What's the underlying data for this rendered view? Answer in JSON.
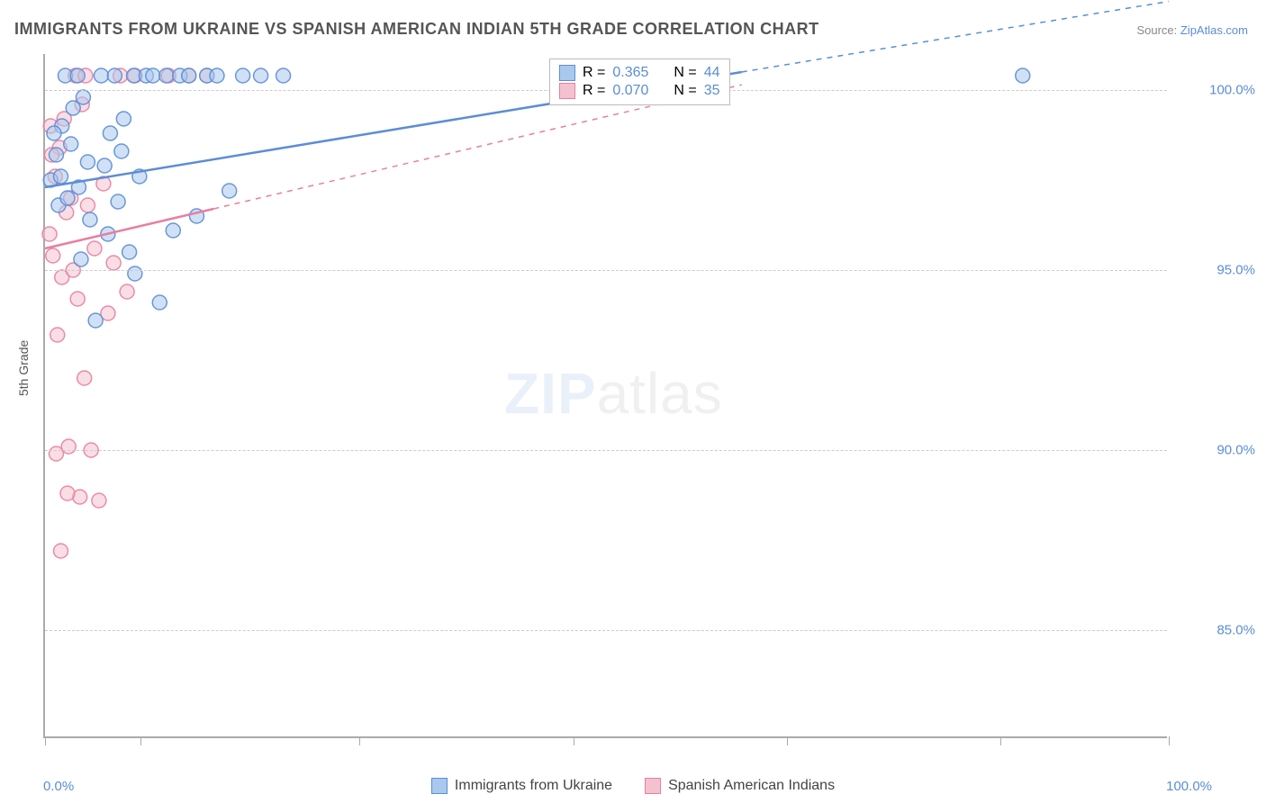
{
  "title": "IMMIGRANTS FROM UKRAINE VS SPANISH AMERICAN INDIAN 5TH GRADE CORRELATION CHART",
  "source_prefix": "Source: ",
  "source_link": "ZipAtlas.com",
  "ylabel": "5th Grade",
  "watermark_bold": "ZIP",
  "watermark_light": "atlas",
  "chart": {
    "type": "scatter",
    "xlim": [
      0,
      100
    ],
    "ylim": [
      82,
      101
    ],
    "ytick_labels": [
      "85.0%",
      "90.0%",
      "95.0%",
      "100.0%"
    ],
    "ytick_values": [
      85,
      90,
      95,
      100
    ],
    "xtick_positions": [
      0,
      8.5,
      28,
      47,
      66,
      85,
      100
    ],
    "xtick_label_left": "0.0%",
    "xtick_label_right": "100.0%",
    "grid_color": "#cccccc",
    "background": "#ffffff",
    "series": [
      {
        "name": "Immigrants from Ukraine",
        "color_fill": "#a9c8ec",
        "color_stroke": "#5b8dd6",
        "marker_radius": 8,
        "marker_opacity": 0.55,
        "points": [
          [
            0.5,
            97.5
          ],
          [
            1.0,
            98.2
          ],
          [
            1.2,
            96.8
          ],
          [
            1.5,
            99.0
          ],
          [
            2.0,
            97.0
          ],
          [
            2.3,
            98.5
          ],
          [
            2.5,
            99.5
          ],
          [
            3.0,
            97.3
          ],
          [
            3.4,
            99.8
          ],
          [
            3.8,
            98.0
          ],
          [
            4.0,
            96.4
          ],
          [
            4.5,
            93.6
          ],
          [
            5.0,
            100.4
          ],
          [
            5.3,
            97.9
          ],
          [
            5.8,
            98.8
          ],
          [
            6.2,
            100.4
          ],
          [
            6.8,
            98.3
          ],
          [
            7.0,
            99.2
          ],
          [
            7.5,
            95.5
          ],
          [
            7.9,
            100.4
          ],
          [
            8.4,
            97.6
          ],
          [
            9.0,
            100.4
          ],
          [
            9.6,
            100.4
          ],
          [
            10.2,
            94.1
          ],
          [
            10.8,
            100.4
          ],
          [
            11.4,
            96.1
          ],
          [
            12.0,
            100.4
          ],
          [
            12.8,
            100.4
          ],
          [
            13.5,
            96.5
          ],
          [
            14.4,
            100.4
          ],
          [
            15.3,
            100.4
          ],
          [
            16.4,
            97.2
          ],
          [
            17.6,
            100.4
          ],
          [
            19.2,
            100.4
          ],
          [
            21.2,
            100.4
          ],
          [
            3.2,
            95.3
          ],
          [
            5.6,
            96.0
          ],
          [
            8.0,
            94.9
          ],
          [
            1.8,
            100.4
          ],
          [
            2.9,
            100.4
          ],
          [
            0.8,
            98.8
          ],
          [
            1.4,
            97.6
          ],
          [
            6.5,
            96.9
          ],
          [
            87.0,
            100.4
          ]
        ],
        "trend": {
          "x1": 0,
          "y1": 97.3,
          "x2": 62,
          "y2": 100.5,
          "width": 2.5,
          "extend_dashed_to": 100
        },
        "R": "0.365",
        "N": "44"
      },
      {
        "name": "Spanish American Indians",
        "color_fill": "#f4c2cf",
        "color_stroke": "#e87fa0",
        "marker_radius": 8,
        "marker_opacity": 0.55,
        "points": [
          [
            0.4,
            96.0
          ],
          [
            0.7,
            95.4
          ],
          [
            0.9,
            97.6
          ],
          [
            1.1,
            93.2
          ],
          [
            1.3,
            98.4
          ],
          [
            1.5,
            94.8
          ],
          [
            1.7,
            99.2
          ],
          [
            1.9,
            96.6
          ],
          [
            2.1,
            90.1
          ],
          [
            2.3,
            97.0
          ],
          [
            2.5,
            95.0
          ],
          [
            2.7,
            100.4
          ],
          [
            2.9,
            94.2
          ],
          [
            3.1,
            88.7
          ],
          [
            3.3,
            99.6
          ],
          [
            3.5,
            92.0
          ],
          [
            3.8,
            96.8
          ],
          [
            4.1,
            90.0
          ],
          [
            4.4,
            95.6
          ],
          [
            4.8,
            88.6
          ],
          [
            5.2,
            97.4
          ],
          [
            5.6,
            93.8
          ],
          [
            6.1,
            95.2
          ],
          [
            6.7,
            100.4
          ],
          [
            7.3,
            94.4
          ],
          [
            8.0,
            100.4
          ],
          [
            0.5,
            99.0
          ],
          [
            0.6,
            98.2
          ],
          [
            1.0,
            89.9
          ],
          [
            1.4,
            87.2
          ],
          [
            3.6,
            100.4
          ],
          [
            2.0,
            88.8
          ],
          [
            11.0,
            100.4
          ],
          [
            12.8,
            100.4
          ],
          [
            14.4,
            100.4
          ]
        ],
        "trend": {
          "x1": 0,
          "y1": 95.6,
          "x2": 15,
          "y2": 96.7,
          "width": 2.5,
          "extend_dashed_to": 62
        },
        "R": "0.070",
        "N": "35"
      }
    ],
    "stats_box": {
      "R_label": "R =",
      "N_label": "N ="
    }
  }
}
